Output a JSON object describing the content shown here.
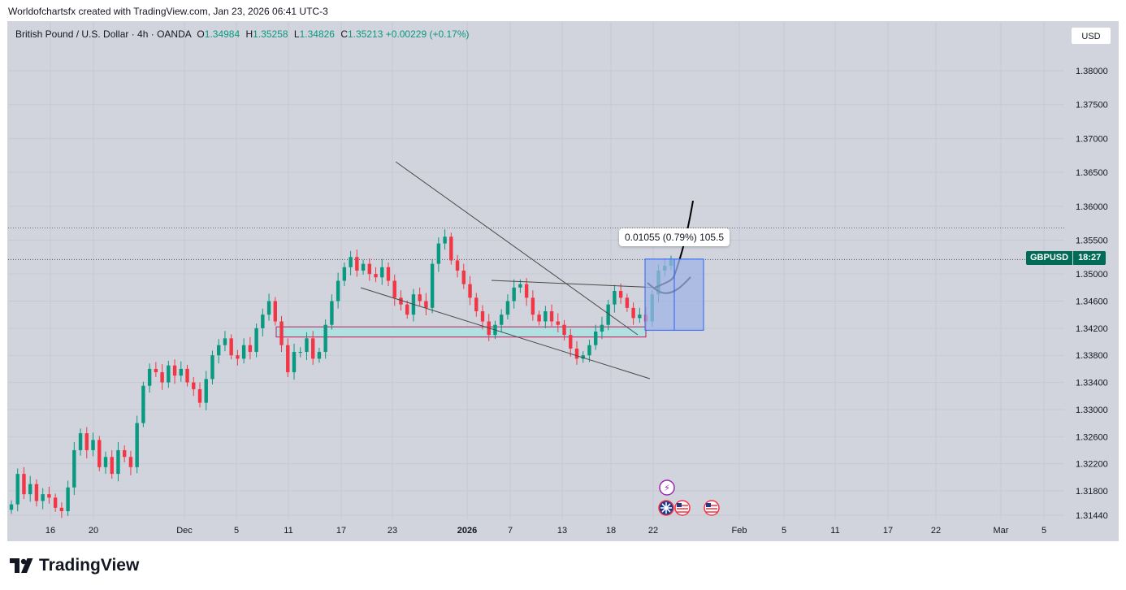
{
  "credit": "Worldofchartsfx created with TradingView.com, Jan 23, 2026 06:41 UTC-3",
  "legend": {
    "title": "British Pound / U.S. Dollar · 4h · OANDA",
    "o_label": "O",
    "o_value": "1.34984",
    "h_label": "H",
    "h_value": "1.35258",
    "l_label": "L",
    "l_value": "1.34826",
    "c_label": "C",
    "c_value": "1.35213",
    "change": "+0.00229 (+0.17%)"
  },
  "currency_button": "USD",
  "price_tag": {
    "symbol": "GBPUSD",
    "countdown": "18:27"
  },
  "measure_label": "0.01055 (0.79%) 105.5",
  "brand": "TradingView",
  "colors": {
    "background": "#d1d4dc",
    "up": "#089981",
    "down": "#f23645",
    "zone_fill": "#b2e0e0",
    "zone_border": "#c2185b",
    "measure_fill": "#9fb4e6",
    "measure_border": "#2962ff",
    "tag": "#006b57"
  },
  "chart_data": {
    "type": "candlestick",
    "symbol": "GBPUSD",
    "timeframe": "4h",
    "ylim": [
      1.3122,
      1.3855
    ],
    "y_ticks": [
      "1.38000",
      "1.37500",
      "1.37000",
      "1.36500",
      "1.36000",
      "1.35500",
      "1.35000",
      "1.34600",
      "1.34200",
      "1.33800",
      "1.33400",
      "1.33000",
      "1.32600",
      "1.32200",
      "1.31800",
      "1.31440"
    ],
    "x_ticks": [
      "16",
      "20",
      "Dec",
      "5",
      "11",
      "17",
      "23",
      "2026",
      "7",
      "13",
      "18",
      "22",
      "Feb",
      "5",
      "11",
      "17",
      "22",
      "Mar",
      "5"
    ],
    "last_price": 1.35213,
    "high_line": 1.3568,
    "closes": [
      1.316,
      1.3205,
      1.3175,
      1.319,
      1.3165,
      1.3175,
      1.317,
      1.3155,
      1.315,
      1.3185,
      1.324,
      1.3265,
      1.324,
      1.3255,
      1.3215,
      1.323,
      1.3205,
      1.324,
      1.323,
      1.3215,
      1.328,
      1.3335,
      1.336,
      1.3355,
      1.334,
      1.3365,
      1.335,
      1.336,
      1.334,
      1.333,
      1.331,
      1.3345,
      1.338,
      1.3395,
      1.3405,
      1.338,
      1.3375,
      1.3395,
      1.3385,
      1.342,
      1.344,
      1.346,
      1.343,
      1.3395,
      1.3355,
      1.3385,
      1.3385,
      1.3405,
      1.3375,
      1.3385,
      1.3425,
      1.346,
      1.349,
      1.351,
      1.3525,
      1.3505,
      1.3515,
      1.35,
      1.3495,
      1.351,
      1.349,
      1.3465,
      1.3455,
      1.344,
      1.347,
      1.346,
      1.345,
      1.3515,
      1.3545,
      1.3555,
      1.352,
      1.3505,
      1.3485,
      1.3465,
      1.3445,
      1.343,
      1.341,
      1.3425,
      1.344,
      1.346,
      1.348,
      1.3485,
      1.3465,
      1.344,
      1.343,
      1.3445,
      1.343,
      1.3425,
      1.341,
      1.339,
      1.3375,
      1.338,
      1.3395,
      1.3415,
      1.3425,
      1.3455,
      1.3475,
      1.3465,
      1.345,
      1.3435,
      1.344,
      1.343,
      1.347,
      1.3505,
      1.3512,
      1.3521
    ],
    "zone": {
      "top": 1.3422,
      "bottom": 1.3407,
      "from_index": 26,
      "to_index": 84
    },
    "measure": {
      "low": 1.3417,
      "high": 1.3522,
      "delta": "0.01055",
      "percent": "0.79%",
      "pips": "105.5"
    }
  }
}
